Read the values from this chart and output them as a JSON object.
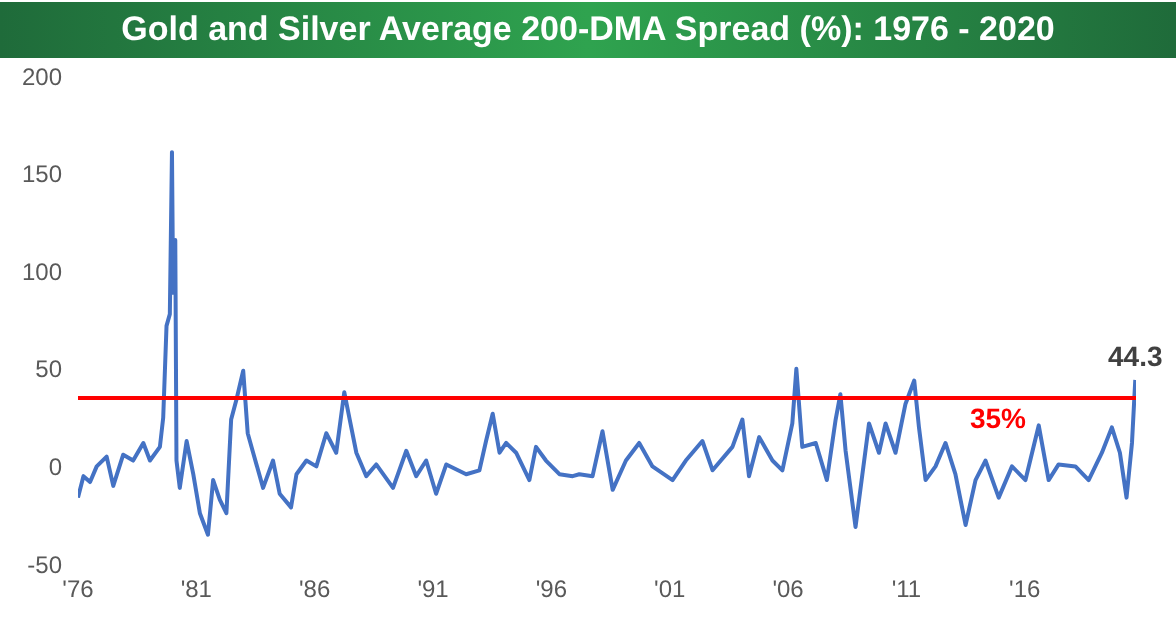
{
  "chart_data": {
    "type": "line",
    "title": "Gold and Silver Average 200-DMA Spread (%): 1976 - 2020",
    "x": [
      1976.0,
      1976.23,
      1976.51,
      1976.79,
      1977.21,
      1977.49,
      1977.91,
      1978.33,
      1978.76,
      1979.04,
      1979.46,
      1979.6,
      1979.74,
      1979.88,
      1979.97,
      1980.02,
      1980.11,
      1980.16,
      1980.3,
      1980.59,
      1980.87,
      1981.15,
      1981.49,
      1981.71,
      1981.99,
      1982.27,
      1982.47,
      1982.69,
      1982.98,
      1983.17,
      1983.4,
      1983.82,
      1984.24,
      1984.52,
      1985.0,
      1985.23,
      1985.65,
      1986.07,
      1986.49,
      1986.91,
      1987.25,
      1987.48,
      1987.76,
      1988.18,
      1988.6,
      1989.31,
      1989.87,
      1990.29,
      1990.71,
      1991.13,
      1991.56,
      1992.4,
      1992.96,
      1993.24,
      1993.52,
      1993.81,
      1994.09,
      1994.51,
      1995.07,
      1995.35,
      1995.77,
      1996.34,
      1996.9,
      1997.18,
      1997.74,
      1998.16,
      1998.59,
      1999.15,
      1999.71,
      2000.27,
      2001.12,
      2001.68,
      2002.38,
      2002.81,
      2003.65,
      2004.07,
      2004.35,
      2004.78,
      2005.34,
      2005.76,
      2006.18,
      2006.35,
      2006.6,
      2007.17,
      2007.64,
      2008.01,
      2008.21,
      2008.43,
      2008.85,
      2009.14,
      2009.42,
      2009.84,
      2010.12,
      2010.54,
      2010.96,
      2011.33,
      2011.53,
      2011.81,
      2012.23,
      2012.65,
      2013.07,
      2013.5,
      2013.92,
      2014.34,
      2014.9,
      2015.46,
      2016.03,
      2016.59,
      2017.01,
      2017.43,
      2018.14,
      2018.7,
      2019.26,
      2019.68,
      2020.02,
      2020.3,
      2020.53,
      2020.67
    ],
    "series": [
      {
        "color": "#4472c4",
        "values": [
          -16,
          -5,
          -8,
          0,
          5,
          -10,
          6,
          3,
          12,
          3,
          10,
          25,
          72,
          78,
          161,
          89,
          116,
          3,
          -11,
          13,
          -4,
          -24,
          -35,
          -7,
          -17,
          -24,
          24,
          34,
          49,
          17,
          7,
          -11,
          3,
          -14,
          -21,
          -4,
          3,
          0,
          17,
          7,
          38,
          24,
          7,
          -5,
          1,
          -11,
          8,
          -5,
          3,
          -14,
          1,
          -4,
          -2,
          13,
          27,
          7,
          12,
          7,
          -7,
          10,
          3,
          -4,
          -5,
          -4,
          -5,
          18,
          -12,
          3,
          12,
          0,
          -7,
          3,
          13,
          -2,
          10,
          24,
          -5,
          15,
          3,
          -2,
          22,
          50,
          10,
          12,
          -7,
          24,
          37,
          8,
          -31,
          -4,
          22,
          7,
          22,
          7,
          32,
          44,
          20,
          -7,
          0,
          12,
          -4,
          -30,
          -7,
          3,
          -16,
          0,
          -7,
          21,
          -7,
          1,
          0,
          -7,
          7,
          20,
          7,
          -16,
          12,
          44.3
        ]
      }
    ],
    "xlim": [
      1976,
      2020.7
    ],
    "xticks": [
      {
        "value": 1976,
        "label": "'76"
      },
      {
        "value": 1981,
        "label": "'81"
      },
      {
        "value": 1986,
        "label": "'86"
      },
      {
        "value": 1991,
        "label": "'91"
      },
      {
        "value": 1996,
        "label": "'96"
      },
      {
        "value": 2001,
        "label": "'01"
      },
      {
        "value": 2006,
        "label": "'06"
      },
      {
        "value": 2011,
        "label": "'11"
      },
      {
        "value": 2016,
        "label": "'16"
      }
    ],
    "ylim": [
      -50,
      200
    ],
    "yticks": [
      -50,
      0,
      50,
      100,
      150,
      200
    ],
    "ref_lines": [
      {
        "axis": "y",
        "value": 35,
        "label": "35%",
        "color": "#ff0000"
      }
    ],
    "annotations": [
      {
        "text": "44.3",
        "x": 2020.67,
        "y": 44.3
      }
    ],
    "legend": false,
    "grid": false
  }
}
